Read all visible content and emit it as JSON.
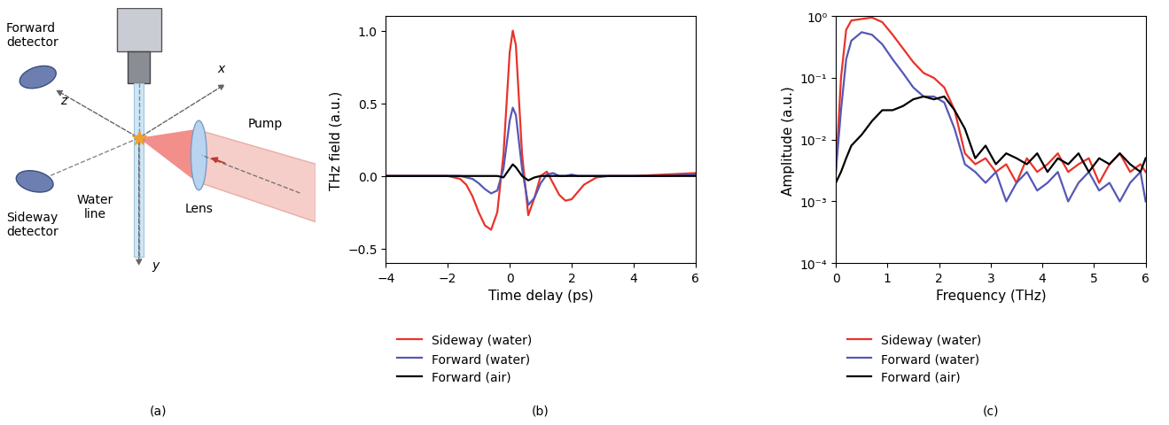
{
  "panel_labels": [
    "(a)",
    "(b)",
    "(c)"
  ],
  "diagram": {
    "labels": {
      "forward_detector": "Forward\ndetector",
      "sideway_detector": "Sideway\ndetector",
      "water_line": "Water\nline",
      "lens": "Lens",
      "pump": "Pump",
      "x_axis": "x",
      "y_axis": "y",
      "z_axis": "z"
    }
  },
  "chart_data": [
    {
      "type": "line",
      "x_label": "Time delay (ps)",
      "y_label": "THz field (a.u.)",
      "xlim": [
        -4,
        6
      ],
      "ylim": [
        -0.6,
        1.1
      ],
      "xticks": [
        {
          "value": -4,
          "label": "−4"
        },
        {
          "value": -2,
          "label": "−2"
        },
        0,
        2,
        4,
        6
      ],
      "yticks": [
        {
          "value": -0.5,
          "label": "−0.5"
        },
        {
          "value": 0,
          "label": "0.0"
        },
        0.5,
        {
          "value": 1,
          "label": "1.0"
        }
      ],
      "legend": "below",
      "x": [
        -4,
        -3,
        -2,
        -1.6,
        -1.4,
        -1.2,
        -1.0,
        -0.8,
        -0.6,
        -0.4,
        -0.2,
        0.0,
        0.1,
        0.2,
        0.4,
        0.6,
        0.8,
        1.0,
        1.2,
        1.4,
        1.6,
        1.8,
        2.0,
        2.2,
        2.4,
        2.8,
        3.2,
        4,
        5,
        6
      ],
      "series": [
        {
          "name": "Sideway (water)",
          "color": "#e8332a",
          "values": [
            0,
            0,
            0,
            -0.02,
            -0.06,
            -0.14,
            -0.25,
            -0.34,
            -0.37,
            -0.25,
            0.15,
            0.85,
            1.0,
            0.9,
            0.15,
            -0.27,
            -0.15,
            0.0,
            0.03,
            -0.05,
            -0.13,
            -0.17,
            -0.16,
            -0.11,
            -0.06,
            -0.01,
            0.0,
            0.0,
            0.01,
            0.02
          ]
        },
        {
          "name": "Forward (water)",
          "color": "#5558b5",
          "values": [
            0,
            0,
            0,
            0,
            -0.01,
            -0.02,
            -0.05,
            -0.09,
            -0.12,
            -0.1,
            0.05,
            0.38,
            0.47,
            0.42,
            0.05,
            -0.2,
            -0.15,
            -0.05,
            0.01,
            0.02,
            0.0,
            0.0,
            0.01,
            0.0,
            0.0,
            0.0,
            0.0,
            0.0,
            0.0,
            0.01
          ]
        },
        {
          "name": "Forward (air)",
          "color": "#000000",
          "values": [
            0,
            0,
            0,
            0,
            0,
            0,
            0,
            0,
            0,
            0,
            -0.01,
            0.05,
            0.08,
            0.06,
            0.0,
            -0.03,
            -0.01,
            0,
            0,
            0,
            0,
            0,
            0,
            0,
            0,
            0,
            0,
            0,
            0,
            0
          ]
        }
      ]
    },
    {
      "type": "line",
      "log": "y",
      "x_label": "Frequency (THz)",
      "y_label": "Amplitude (a.u.)",
      "xlim": [
        0,
        6
      ],
      "ylim": [
        0.0001,
        1
      ],
      "xticks": [
        0,
        1,
        2,
        3,
        4,
        5,
        6
      ],
      "yticks": [
        {
          "value": 0.0001,
          "label": "10⁻⁴"
        },
        {
          "value": 0.001,
          "label": "10⁻³"
        },
        {
          "value": 0.01,
          "label": "10⁻²"
        },
        {
          "value": 0.1,
          "label": "10⁻¹"
        },
        {
          "value": 1,
          "label": "10⁰"
        }
      ],
      "legend": "below",
      "x": [
        0,
        0.1,
        0.2,
        0.3,
        0.5,
        0.7,
        0.9,
        1.1,
        1.3,
        1.5,
        1.7,
        1.9,
        2.1,
        2.3,
        2.5,
        2.7,
        2.9,
        3.1,
        3.3,
        3.5,
        3.7,
        3.9,
        4.1,
        4.3,
        4.5,
        4.7,
        4.9,
        5.1,
        5.3,
        5.5,
        5.7,
        5.9,
        6.0
      ],
      "series": [
        {
          "name": "Sideway (water)",
          "color": "#e8332a",
          "values": [
            0.003,
            0.1,
            0.6,
            0.85,
            0.9,
            0.95,
            0.8,
            0.5,
            0.3,
            0.18,
            0.12,
            0.1,
            0.07,
            0.03,
            0.006,
            0.004,
            0.005,
            0.003,
            0.004,
            0.002,
            0.005,
            0.003,
            0.004,
            0.006,
            0.003,
            0.004,
            0.005,
            0.002,
            0.004,
            0.006,
            0.003,
            0.004,
            0.003
          ]
        },
        {
          "name": "Forward (water)",
          "color": "#5558b5",
          "values": [
            0.003,
            0.03,
            0.2,
            0.4,
            0.55,
            0.5,
            0.35,
            0.2,
            0.12,
            0.07,
            0.05,
            0.05,
            0.04,
            0.015,
            0.004,
            0.003,
            0.002,
            0.003,
            0.001,
            0.002,
            0.003,
            0.0015,
            0.002,
            0.003,
            0.001,
            0.002,
            0.003,
            0.0015,
            0.002,
            0.001,
            0.002,
            0.003,
            0.001
          ]
        },
        {
          "name": "Forward (air)",
          "color": "#000000",
          "values": [
            0.002,
            0.003,
            0.005,
            0.008,
            0.012,
            0.02,
            0.03,
            0.03,
            0.035,
            0.045,
            0.05,
            0.045,
            0.05,
            0.03,
            0.015,
            0.005,
            0.008,
            0.004,
            0.006,
            0.005,
            0.004,
            0.006,
            0.003,
            0.005,
            0.004,
            0.006,
            0.003,
            0.005,
            0.004,
            0.006,
            0.004,
            0.003,
            0.005
          ]
        }
      ]
    }
  ]
}
